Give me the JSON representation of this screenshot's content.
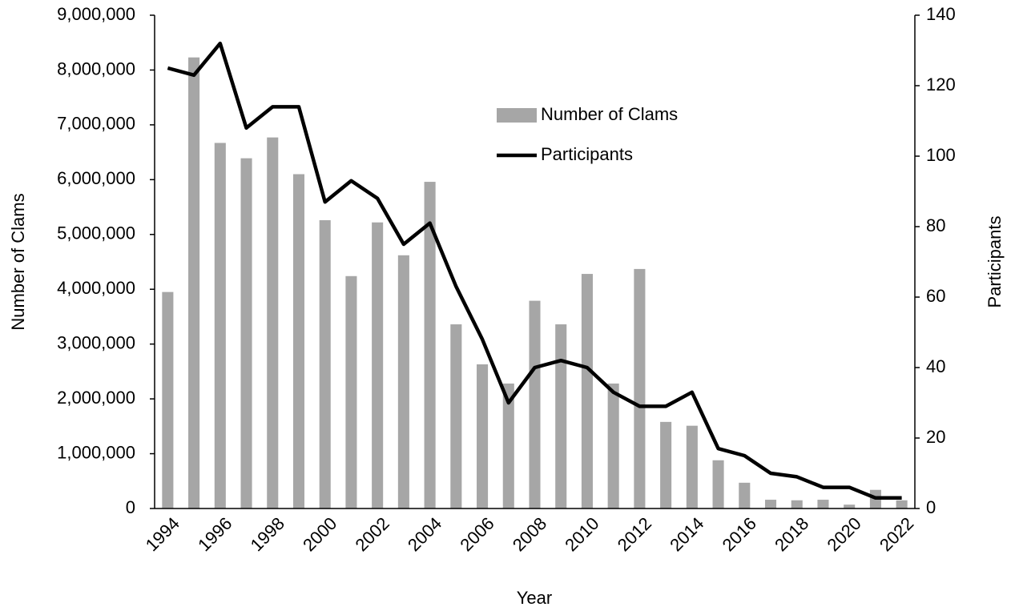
{
  "chart_data": {
    "type": "bar_line",
    "x_label": "Year",
    "y_label": "Number of Clams",
    "y2_label": "Participants",
    "categories": [
      "1994",
      null,
      "1996",
      null,
      "1998",
      null,
      "2000",
      null,
      "2002",
      null,
      "2004",
      null,
      "2006",
      null,
      "2008",
      null,
      "2010",
      null,
      "2012",
      null,
      "2014",
      null,
      "2016",
      null,
      "2018",
      null,
      "2020",
      null,
      "2022"
    ],
    "series": [
      {
        "name": "Number of Clams",
        "type": "bar",
        "color": "#a6a6a6",
        "axis": "y",
        "values": [
          3950000,
          8230000,
          6670000,
          6390000,
          6770000,
          6100000,
          5260000,
          4240000,
          5220000,
          4620000,
          5960000,
          3360000,
          2630000,
          2280000,
          3790000,
          3360000,
          4280000,
          2280000,
          4370000,
          1580000,
          1510000,
          880000,
          470000,
          160000,
          150000,
          160000,
          70000,
          340000,
          150000
        ]
      },
      {
        "name": "Participants",
        "type": "line",
        "color": "#000000",
        "axis": "y2",
        "values": [
          125,
          123,
          132,
          108,
          114,
          114,
          87,
          93,
          88,
          75,
          81,
          63,
          48,
          30,
          40,
          42,
          40,
          33,
          29,
          29,
          33,
          17,
          15,
          10,
          9,
          6,
          6,
          3,
          3
        ]
      }
    ],
    "ylim": [
      0,
      9000000
    ],
    "yticks": [
      {
        "value": 0,
        "label": "0"
      },
      {
        "value": 1000000,
        "label": "1,000,000"
      },
      {
        "value": 2000000,
        "label": "2,000,000"
      },
      {
        "value": 3000000,
        "label": "3,000,000"
      },
      {
        "value": 4000000,
        "label": "4,000,000"
      },
      {
        "value": 5000000,
        "label": "5,000,000"
      },
      {
        "value": 6000000,
        "label": "6,000,000"
      },
      {
        "value": 7000000,
        "label": "7,000,000"
      },
      {
        "value": 8000000,
        "label": "8,000,000"
      },
      {
        "value": 9000000,
        "label": "9,000,000"
      }
    ],
    "y2lim": [
      0,
      140
    ],
    "y2ticks": [
      0,
      20,
      40,
      60,
      80,
      100,
      120,
      140
    ],
    "grid": false,
    "legend": "upper center"
  }
}
